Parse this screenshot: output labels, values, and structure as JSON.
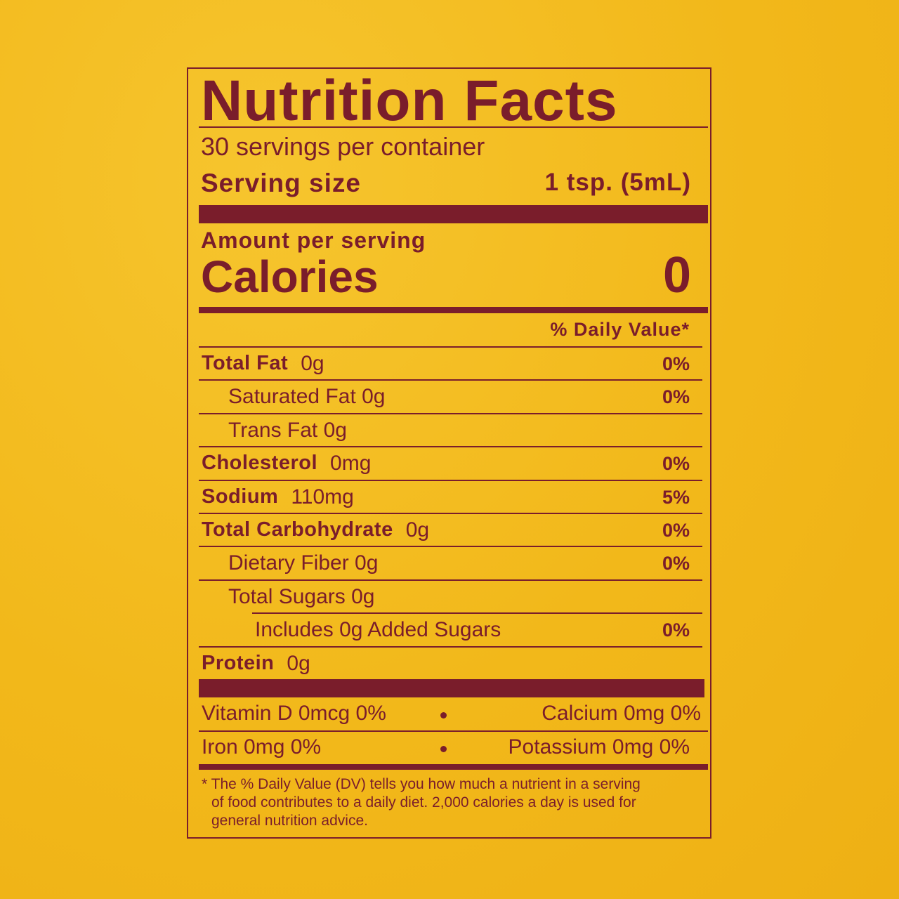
{
  "title": "Nutrition Facts",
  "servings": "30 servings per container",
  "serving_size": {
    "label": "Serving size",
    "value": "1 tsp. (5mL)"
  },
  "amount_per_serving": "Amount per serving",
  "calories": {
    "label": "Calories",
    "value": "0"
  },
  "dv_header": "% Daily Value*",
  "nutrients": [
    {
      "name": "Total Fat",
      "amount": "0g",
      "dv": "0%"
    },
    {
      "name": "Saturated Fat 0g",
      "dv": "0%"
    },
    {
      "name": "Trans Fat 0g"
    },
    {
      "name": "Cholesterol",
      "amount": "0mg",
      "dv": "0%"
    },
    {
      "name": "Sodium",
      "amount": "110mg",
      "dv": "5%"
    },
    {
      "name": "Total Carbohydrate",
      "amount": "0g",
      "dv": "0%"
    },
    {
      "name": "Dietary Fiber 0g",
      "dv": "0%"
    },
    {
      "name": "Total Sugars 0g"
    },
    {
      "name": "Includes 0g Added Sugars",
      "dv": "0%"
    },
    {
      "name": "Protein",
      "amount": "0g"
    }
  ],
  "vitamins": [
    [
      "Vitamin D 0mcg 0%",
      "Calcium 0mg 0%"
    ],
    [
      "Iron 0mg 0%",
      "Potassium 0mg 0%"
    ]
  ],
  "footnote": [
    "* The % Daily Value (DV) tells you how much a nutrient in a serving",
    "of food contributes to a daily diet. 2,000 calories a day is used for",
    "general nutrition advice."
  ]
}
